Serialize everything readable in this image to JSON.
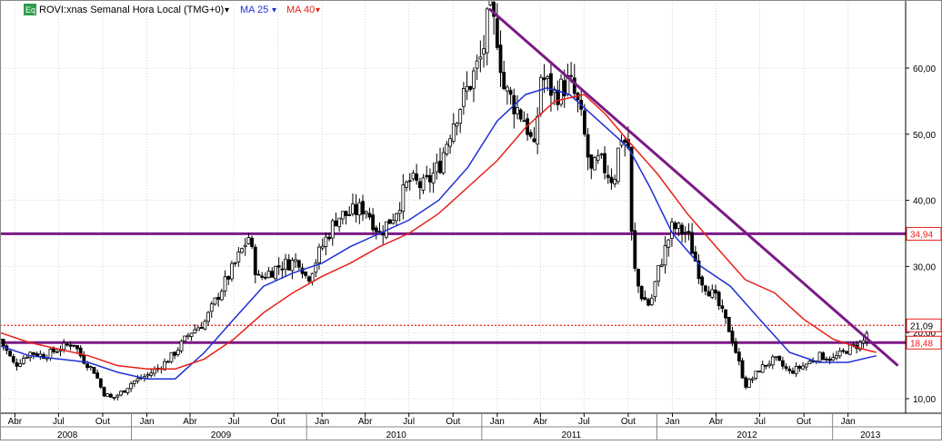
{
  "header": {
    "badge": "Eq",
    "instrument": "ROVI:xnas Semanal Hora Local (TMG+0)",
    "ma25_label": "MA 25",
    "ma40_label": "MA 40",
    "dropdown_glyph": "▾"
  },
  "colors": {
    "candle": "#000000",
    "ma25": "#1f2fd6",
    "ma40": "#e8201a",
    "trend": "#7a1a86",
    "current_line": "#e8201a",
    "badge_bg": "#2e9e4a"
  },
  "chart_data": {
    "type": "candlestick",
    "title": "ROVI:xnas Semanal Hora Local (TMG+0)",
    "y_axis": {
      "position": "right",
      "ticks": [
        10,
        20,
        30,
        40,
        50,
        60
      ],
      "tick_labels": [
        "10,00",
        "20,00",
        "30,00",
        "40,00",
        "50,00",
        "60,00"
      ],
      "range": [
        8,
        70
      ]
    },
    "x_axis": {
      "range": [
        "2008-03-01",
        "2013-05-01"
      ],
      "month_ticks": [
        {
          "label": "Abr",
          "date": "2008-04-01"
        },
        {
          "label": "Jul",
          "date": "2008-07-01"
        },
        {
          "label": "Out",
          "date": "2008-10-01"
        },
        {
          "label": "Jan",
          "date": "2009-01-01"
        },
        {
          "label": "Abr",
          "date": "2009-04-01"
        },
        {
          "label": "Jul",
          "date": "2009-07-01"
        },
        {
          "label": "Out",
          "date": "2009-10-01"
        },
        {
          "label": "Jan",
          "date": "2010-01-01"
        },
        {
          "label": "Abr",
          "date": "2010-04-01"
        },
        {
          "label": "Jul",
          "date": "2010-07-01"
        },
        {
          "label": "Out",
          "date": "2010-10-01"
        },
        {
          "label": "Jan",
          "date": "2011-01-01"
        },
        {
          "label": "Abr",
          "date": "2011-04-01"
        },
        {
          "label": "Jul",
          "date": "2011-07-01"
        },
        {
          "label": "Out",
          "date": "2011-10-01"
        },
        {
          "label": "Jan",
          "date": "2012-01-01"
        },
        {
          "label": "Abr",
          "date": "2012-04-01"
        },
        {
          "label": "Jul",
          "date": "2012-07-01"
        },
        {
          "label": "Out",
          "date": "2012-10-01"
        },
        {
          "label": "Jan",
          "date": "2013-01-01"
        }
      ],
      "year_labels": [
        {
          "label": "2008",
          "date": "2008-08-15"
        },
        {
          "label": "2009",
          "date": "2009-07-01"
        },
        {
          "label": "2010",
          "date": "2010-07-01"
        },
        {
          "label": "2011",
          "date": "2011-07-01"
        },
        {
          "label": "2012",
          "date": "2012-07-01"
        },
        {
          "label": "2013",
          "date": "2013-03-15"
        }
      ],
      "year_dividers": [
        "2009-01-01",
        "2010-01-01",
        "2011-01-01",
        "2012-01-01",
        "2013-01-01"
      ]
    },
    "grid": true,
    "price_path": [
      [
        "2008-03-01",
        19
      ],
      [
        "2008-04-01",
        15
      ],
      [
        "2008-05-01",
        17
      ],
      [
        "2008-06-01",
        16.5
      ],
      [
        "2008-07-01",
        17.5
      ],
      [
        "2008-08-01",
        18.5
      ],
      [
        "2008-08-20",
        16
      ],
      [
        "2008-09-15",
        14
      ],
      [
        "2008-10-01",
        11
      ],
      [
        "2008-10-20",
        10
      ],
      [
        "2008-11-10",
        11
      ],
      [
        "2008-12-01",
        12.5
      ],
      [
        "2009-01-01",
        13.5
      ],
      [
        "2009-02-01",
        15
      ],
      [
        "2009-03-01",
        17
      ],
      [
        "2009-04-01",
        20
      ],
      [
        "2009-05-01",
        21.5
      ],
      [
        "2009-06-01",
        26
      ],
      [
        "2009-07-01",
        30
      ],
      [
        "2009-08-01",
        34.5
      ],
      [
        "2009-08-20",
        28
      ],
      [
        "2009-10-01",
        30
      ],
      [
        "2009-11-15",
        31
      ],
      [
        "2009-12-01",
        28
      ],
      [
        "2010-01-01",
        33
      ],
      [
        "2010-02-01",
        37.5
      ],
      [
        "2010-03-01",
        38
      ],
      [
        "2010-04-01",
        39
      ],
      [
        "2010-05-01",
        35
      ],
      [
        "2010-06-01",
        38
      ],
      [
        "2010-07-01",
        43
      ],
      [
        "2010-08-01",
        42
      ],
      [
        "2010-09-01",
        45
      ],
      [
        "2010-10-01",
        52
      ],
      [
        "2010-11-01",
        57
      ],
      [
        "2010-12-01",
        62
      ],
      [
        "2010-12-15",
        68.5
      ],
      [
        "2011-01-01",
        65
      ],
      [
        "2011-01-15",
        57
      ],
      [
        "2011-02-01",
        55
      ],
      [
        "2011-03-01",
        52
      ],
      [
        "2011-03-20",
        47
      ],
      [
        "2011-04-01",
        59
      ],
      [
        "2011-05-01",
        56
      ],
      [
        "2011-06-01",
        58
      ],
      [
        "2011-06-20",
        54
      ],
      [
        "2011-07-01",
        50
      ],
      [
        "2011-07-15",
        44
      ],
      [
        "2011-08-01",
        46
      ],
      [
        "2011-09-01",
        43
      ],
      [
        "2011-09-15",
        50
      ],
      [
        "2011-10-01",
        48
      ],
      [
        "2011-10-10",
        31
      ],
      [
        "2011-10-25",
        26
      ],
      [
        "2011-11-15",
        24
      ],
      [
        "2011-12-01",
        29
      ],
      [
        "2012-01-01",
        36
      ],
      [
        "2012-02-01",
        35
      ],
      [
        "2012-03-01",
        28
      ],
      [
        "2012-04-01",
        25
      ],
      [
        "2012-05-01",
        20
      ],
      [
        "2012-06-01",
        12
      ],
      [
        "2012-06-15",
        13
      ],
      [
        "2012-07-01",
        14.5
      ],
      [
        "2012-08-01",
        16
      ],
      [
        "2012-09-01",
        14
      ],
      [
        "2012-10-01",
        15
      ],
      [
        "2012-11-01",
        16.5
      ],
      [
        "2012-12-01",
        16
      ],
      [
        "2013-01-01",
        17.5
      ],
      [
        "2013-02-01",
        18.5
      ],
      [
        "2013-02-15",
        21
      ]
    ],
    "series": [
      {
        "name": "MA 25",
        "color": "#1f2fd6",
        "points": [
          [
            "2008-03-01",
            18
          ],
          [
            "2008-05-01",
            16.5
          ],
          [
            "2008-07-01",
            16
          ],
          [
            "2008-09-01",
            15.5
          ],
          [
            "2008-11-01",
            14
          ],
          [
            "2009-01-01",
            13
          ],
          [
            "2009-03-01",
            13
          ],
          [
            "2009-05-01",
            17
          ],
          [
            "2009-07-01",
            22
          ],
          [
            "2009-09-01",
            27
          ],
          [
            "2009-11-01",
            29
          ],
          [
            "2010-01-01",
            30.5
          ],
          [
            "2010-03-01",
            33
          ],
          [
            "2010-05-01",
            35
          ],
          [
            "2010-07-01",
            37
          ],
          [
            "2010-09-01",
            40
          ],
          [
            "2010-11-01",
            45
          ],
          [
            "2011-01-01",
            52
          ],
          [
            "2011-03-01",
            56
          ],
          [
            "2011-04-15",
            57
          ],
          [
            "2011-06-01",
            56
          ],
          [
            "2011-08-01",
            52
          ],
          [
            "2011-10-01",
            48
          ],
          [
            "2011-11-15",
            42
          ],
          [
            "2012-01-01",
            35
          ],
          [
            "2012-03-01",
            30
          ],
          [
            "2012-05-01",
            27
          ],
          [
            "2012-07-01",
            22
          ],
          [
            "2012-09-01",
            17
          ],
          [
            "2012-11-01",
            15.5
          ],
          [
            "2013-01-01",
            15.5
          ],
          [
            "2013-03-01",
            16.5
          ]
        ]
      },
      {
        "name": "MA 40",
        "color": "#e8201a",
        "points": [
          [
            "2008-03-01",
            20
          ],
          [
            "2008-05-01",
            18.5
          ],
          [
            "2008-07-01",
            17.5
          ],
          [
            "2008-09-01",
            16.5
          ],
          [
            "2008-11-01",
            15
          ],
          [
            "2009-01-01",
            14.5
          ],
          [
            "2009-03-01",
            14.5
          ],
          [
            "2009-05-01",
            16
          ],
          [
            "2009-07-01",
            19
          ],
          [
            "2009-09-01",
            23
          ],
          [
            "2009-11-01",
            26
          ],
          [
            "2010-01-01",
            28.5
          ],
          [
            "2010-03-01",
            30.5
          ],
          [
            "2010-05-01",
            33
          ],
          [
            "2010-07-01",
            35
          ],
          [
            "2010-09-01",
            38
          ],
          [
            "2010-11-01",
            42
          ],
          [
            "2011-01-01",
            46
          ],
          [
            "2011-03-01",
            51
          ],
          [
            "2011-05-01",
            55
          ],
          [
            "2011-07-01",
            56
          ],
          [
            "2011-08-15",
            53
          ],
          [
            "2011-10-01",
            49
          ],
          [
            "2011-12-01",
            44
          ],
          [
            "2012-02-01",
            38
          ],
          [
            "2012-04-01",
            33
          ],
          [
            "2012-06-01",
            28
          ],
          [
            "2012-08-01",
            26
          ],
          [
            "2012-10-01",
            22
          ],
          [
            "2012-12-01",
            19
          ],
          [
            "2013-02-01",
            17.5
          ],
          [
            "2013-03-01",
            17
          ]
        ]
      }
    ],
    "horizontal_levels": [
      {
        "value": 34.94,
        "label": "34,94",
        "style": "solid",
        "color": "#7a1a86",
        "label_color": "#e8201a"
      },
      {
        "value": 18.48,
        "label": "18,48",
        "style": "solid",
        "color": "#7a1a86",
        "label_color": "#e8201a"
      },
      {
        "value": 21.09,
        "label": "21,09",
        "style": "dotted",
        "color": "#e8201a",
        "label_color": "#000000"
      }
    ],
    "trendline": {
      "from": [
        "2010-12-15",
        69
      ],
      "to": [
        "2013-04-15",
        15
      ],
      "color": "#7a1a86"
    }
  }
}
